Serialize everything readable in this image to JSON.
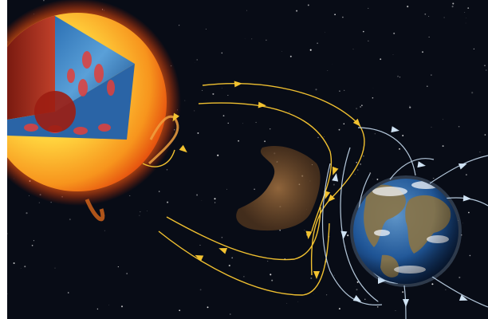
{
  "image": {
    "description_free": true,
    "colors": {
      "space": "#080c16",
      "sun_core": "#ffe36a",
      "sun_edge": "#f2580f",
      "corona": "#ff7a1a",
      "solar_field_line": "#f0c030",
      "earth_field_line": "#c7dcf0",
      "earth_ocean": "#1c4f8f",
      "earth_land": "#8a7548",
      "cme_cloud": "#9a6a3a"
    },
    "elements": [
      "sun-cutaway",
      "coronal-mass-ejection",
      "solar-magnetic-field-lines",
      "earth",
      "earth-magnetosphere-lines",
      "star-field"
    ]
  }
}
